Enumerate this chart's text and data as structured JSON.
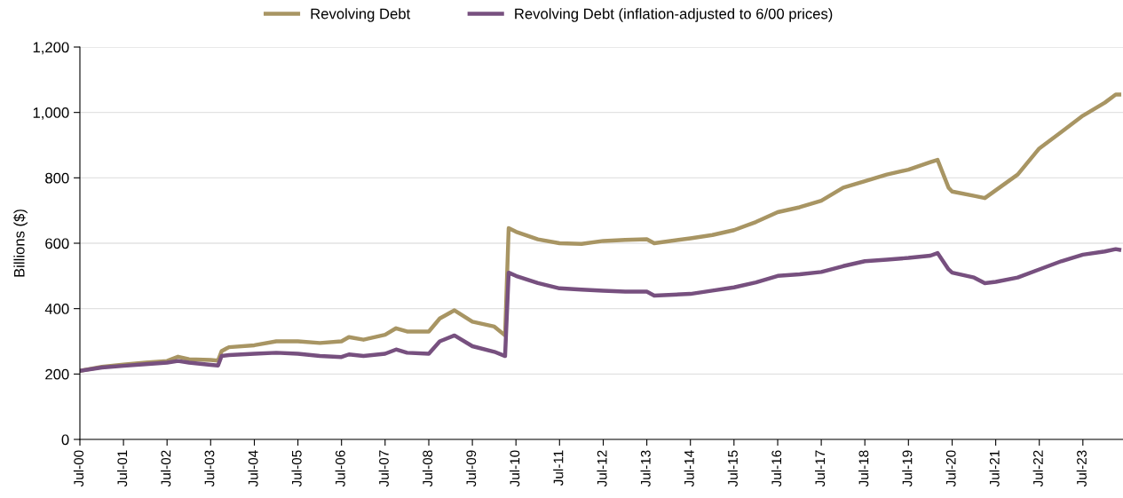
{
  "chart_data": {
    "type": "line",
    "ylabel": "Billions ($)",
    "x": [
      "2000-07",
      "2001-01",
      "2001-07",
      "2002-01",
      "2002-07",
      "2002-10",
      "2003-01",
      "2003-07",
      "2003-09",
      "2003-10",
      "2003-12",
      "2004-07",
      "2005-01",
      "2005-07",
      "2006-01",
      "2006-07",
      "2006-09",
      "2007-01",
      "2007-07",
      "2007-10",
      "2008-01",
      "2008-07",
      "2008-10",
      "2009-02",
      "2009-07",
      "2010-01",
      "2010-04",
      "2010-05",
      "2010-07",
      "2011-01",
      "2011-07",
      "2012-01",
      "2012-07",
      "2013-01",
      "2013-07",
      "2013-09",
      "2014-07",
      "2015-01",
      "2015-07",
      "2016-01",
      "2016-07",
      "2017-01",
      "2017-07",
      "2018-01",
      "2018-07",
      "2019-01",
      "2019-07",
      "2020-01",
      "2020-03",
      "2020-06",
      "2020-07",
      "2021-01",
      "2021-04",
      "2021-07",
      "2022-01",
      "2022-07",
      "2023-01",
      "2023-07",
      "2024-01",
      "2024-04",
      "2024-05"
    ],
    "series": [
      {
        "name": "Revolving Debt",
        "color": "#a89563",
        "values": [
          210,
          222,
          229,
          235,
          240,
          253,
          245,
          243,
          241,
          270,
          282,
          288,
          300,
          300,
          295,
          300,
          313,
          305,
          320,
          340,
          330,
          330,
          370,
          395,
          360,
          345,
          318,
          646,
          635,
          612,
          600,
          598,
          607,
          610,
          612,
          600,
          615,
          625,
          640,
          665,
          695,
          710,
          730,
          770,
          790,
          810,
          825,
          848,
          855,
          770,
          758,
          745,
          738,
          762,
          810,
          890,
          940,
          990,
          1030,
          1055,
          1055
        ]
      },
      {
        "name": "Revolving Debt (inflation-adjusted to 6/00 prices)",
        "color": "#77507f",
        "values": [
          210,
          220,
          225,
          230,
          235,
          240,
          235,
          228,
          226,
          255,
          258,
          262,
          265,
          262,
          255,
          252,
          260,
          255,
          262,
          275,
          265,
          262,
          300,
          318,
          285,
          268,
          255,
          510,
          500,
          478,
          462,
          458,
          455,
          452,
          452,
          440,
          445,
          455,
          465,
          480,
          500,
          505,
          512,
          530,
          545,
          550,
          555,
          562,
          570,
          520,
          510,
          495,
          478,
          482,
          495,
          520,
          545,
          565,
          575,
          582,
          580
        ]
      }
    ],
    "xlim": [
      "2000-07",
      "2024-06"
    ],
    "xticks": [
      {
        "value": "2000-07",
        "label": "Jul-00"
      },
      {
        "value": "2001-07",
        "label": "Jul-01"
      },
      {
        "value": "2002-07",
        "label": "Jul-02"
      },
      {
        "value": "2003-07",
        "label": "Jul-03"
      },
      {
        "value": "2004-07",
        "label": "Jul-04"
      },
      {
        "value": "2005-07",
        "label": "Jul-05"
      },
      {
        "value": "2006-07",
        "label": "Jul-06"
      },
      {
        "value": "2007-07",
        "label": "Jul-07"
      },
      {
        "value": "2008-07",
        "label": "Jul-08"
      },
      {
        "value": "2009-07",
        "label": "Jul-09"
      },
      {
        "value": "2010-07",
        "label": "Jul-10"
      },
      {
        "value": "2011-07",
        "label": "Jul-11"
      },
      {
        "value": "2012-07",
        "label": "Jul-12"
      },
      {
        "value": "2013-07",
        "label": "Jul-13"
      },
      {
        "value": "2014-07",
        "label": "Jul-14"
      },
      {
        "value": "2015-07",
        "label": "Jul-15"
      },
      {
        "value": "2016-07",
        "label": "Jul-16"
      },
      {
        "value": "2017-07",
        "label": "Jul-17"
      },
      {
        "value": "2018-07",
        "label": "Jul-18"
      },
      {
        "value": "2019-07",
        "label": "Jul-19"
      },
      {
        "value": "2020-07",
        "label": "Jul-20"
      },
      {
        "value": "2021-07",
        "label": "Jul-21"
      },
      {
        "value": "2022-07",
        "label": "Jul-22"
      },
      {
        "value": "2023-07",
        "label": "Jul-23"
      }
    ],
    "ylim": [
      0,
      1200
    ],
    "yticks": [
      {
        "value": 0,
        "label": "0"
      },
      {
        "value": 200,
        "label": "200"
      },
      {
        "value": 400,
        "label": "400"
      },
      {
        "value": 600,
        "label": "600"
      },
      {
        "value": 800,
        "label": "800"
      },
      {
        "value": 1000,
        "label": "1,000"
      },
      {
        "value": 1200,
        "label": "1,200"
      }
    ],
    "grid": "y",
    "legend": "top"
  }
}
